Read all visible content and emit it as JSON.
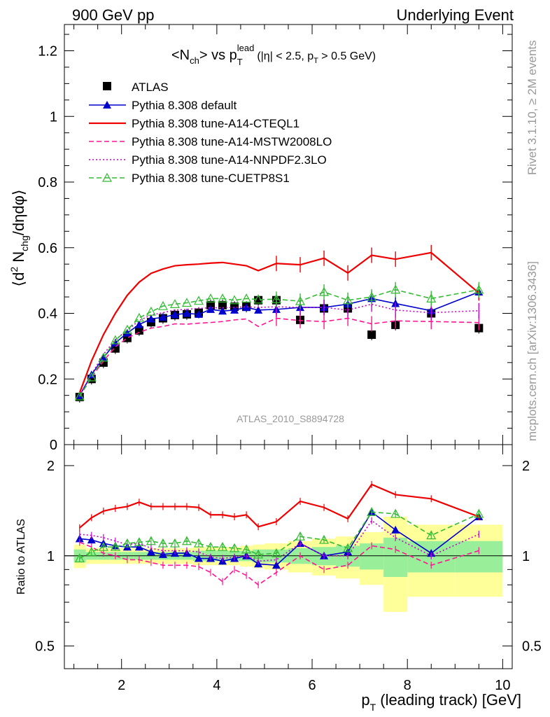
{
  "header": {
    "left": "900 GeV pp",
    "right": "Underlying Event"
  },
  "side_labels": {
    "rivet": "Rivet 3.1.10, ≥ 2M events",
    "mcplots": "mcplots.cern.ch [arXiv:1306.3436]"
  },
  "chart_data": {
    "type": "line",
    "title": "<N_ch> vs p_T^lead (|η| < 2.5, p_T > 0.5 GeV)",
    "title_parts": {
      "main_a": "<N",
      "main_a_sub": "ch",
      "main_b": "> vs p",
      "main_b_sup": "lead",
      "main_b_sub": "T",
      "cond_a": "(|η| < 2.5, p",
      "cond_a_sub": "T",
      "cond_b": " > 0.5 GeV)"
    },
    "watermark": "ATLAS_2010_S8894728",
    "xlabel": "p_T (leading track) [GeV]",
    "xlabel_parts": {
      "a": "p",
      "sub": "T",
      "b": " (leading track) [GeV]"
    },
    "ylabel": "⟨d² N_chg/dηdφ⟩",
    "ylabel_parts": {
      "a": "⟨d",
      "sup": "2",
      "b": " N",
      "sub": "chg",
      "c": "/dηdφ⟩"
    },
    "ratio_ylabel": "Ratio to ATLAS",
    "xlim": [
      0.8,
      10.2
    ],
    "ylim": [
      0,
      1.28
    ],
    "ratio_ylim": [
      0.42,
      2.35
    ],
    "x_ticks": [
      2,
      4,
      6,
      8,
      10
    ],
    "y_ticks": [
      0.2,
      0.4,
      0.6,
      0.8,
      1,
      1.2
    ],
    "y_tick_labels": [
      "0.2",
      "0.4",
      "0.6",
      "0.8",
      "1",
      "1.2"
    ],
    "y_zero_label": "0",
    "ratio_ticks": [
      0.5,
      1,
      2
    ],
    "ratio_tick_labels": [
      "0.5",
      "1",
      "2"
    ],
    "legend_position": "top-left",
    "x": [
      1.12,
      1.37,
      1.62,
      1.87,
      2.12,
      2.37,
      2.62,
      2.87,
      3.12,
      3.37,
      3.62,
      3.87,
      4.12,
      4.37,
      4.62,
      4.87,
      5.25,
      5.75,
      6.25,
      6.75,
      7.25,
      7.75,
      8.5,
      9.5
    ],
    "ratio_x": [
      1.12,
      1.37,
      1.62,
      1.87,
      2.12,
      2.37,
      2.62,
      2.87,
      3.12,
      3.37,
      3.62,
      3.87,
      4.12,
      4.37,
      4.62,
      4.87,
      5.25,
      5.75,
      6.25,
      6.75,
      7.25,
      7.75,
      8.5,
      9.5
    ],
    "ratio_reference": 1,
    "series": [
      {
        "name": "ATLAS",
        "style": "data",
        "color": "#000000",
        "values": [
          0.145,
          0.2,
          0.25,
          0.293,
          0.325,
          0.348,
          0.373,
          0.385,
          0.395,
          0.397,
          0.402,
          0.425,
          0.425,
          0.42,
          0.42,
          0.44,
          0.44,
          0.38,
          0.415,
          0.415,
          0.335,
          0.365,
          0.4,
          0.355
        ]
      },
      {
        "name": "Pythia 8.308 default",
        "style": "solid",
        "color": "#0000cc",
        "marker": "triangle",
        "values": [
          0.15,
          0.213,
          0.265,
          0.31,
          0.34,
          0.366,
          0.383,
          0.388,
          0.396,
          0.4,
          0.397,
          0.412,
          0.407,
          0.41,
          0.418,
          0.41,
          0.412,
          0.418,
          0.418,
          0.428,
          0.445,
          0.43,
          0.408,
          0.465
        ],
        "ratio": [
          1.14,
          1.13,
          1.1,
          1.08,
          1.07,
          1.07,
          1.03,
          1.01,
          1.02,
          1.02,
          0.98,
          0.98,
          0.96,
          0.98,
          1.0,
          0.94,
          0.93,
          1.1,
          1.0,
          1.03,
          1.4,
          1.22,
          1.02,
          1.35
        ],
        "ratio_label_index": null
      },
      {
        "name": "Pythia 8.308 tune-A14-CTEQL1",
        "style": "solid",
        "color": "#ee0000",
        "values": [
          0.158,
          0.255,
          0.335,
          0.4,
          0.455,
          0.495,
          0.522,
          0.535,
          0.545,
          0.548,
          0.55,
          0.553,
          0.555,
          0.55,
          0.545,
          0.53,
          0.552,
          0.548,
          0.568,
          0.523,
          0.577,
          0.565,
          0.585,
          0.462
        ],
        "ratio": [
          1.24,
          1.34,
          1.41,
          1.44,
          1.46,
          1.51,
          1.46,
          1.46,
          1.46,
          1.46,
          1.45,
          1.37,
          1.37,
          1.35,
          1.37,
          1.25,
          1.3,
          1.52,
          1.45,
          1.33,
          1.73,
          1.6,
          1.55,
          1.35
        ]
      },
      {
        "name": "Pythia 8.308 tune-A14-MSTW2008LO",
        "style": "dashed",
        "color": "#ff1493",
        "values": [
          0.147,
          0.205,
          0.255,
          0.298,
          0.325,
          0.342,
          0.355,
          0.36,
          0.368,
          0.367,
          0.37,
          0.372,
          0.375,
          0.38,
          0.383,
          0.36,
          0.385,
          0.378,
          0.375,
          0.385,
          0.368,
          0.377,
          0.375,
          0.372
        ],
        "ratio": [
          1.11,
          1.07,
          1.02,
          1.0,
          0.97,
          0.97,
          0.95,
          0.93,
          0.93,
          0.93,
          0.92,
          0.88,
          0.82,
          0.9,
          0.86,
          0.8,
          0.88,
          1.0,
          0.9,
          0.93,
          1.08,
          1.05,
          0.93,
          1.04
        ]
      },
      {
        "name": "Pythia 8.308 tune-A14-NNPDF2.3LO",
        "style": "dotted",
        "color": "#cc00cc",
        "values": [
          0.15,
          0.215,
          0.275,
          0.32,
          0.348,
          0.378,
          0.395,
          0.402,
          0.41,
          0.412,
          0.415,
          0.417,
          0.417,
          0.418,
          0.42,
          0.418,
          0.42,
          0.418,
          0.418,
          0.41,
          0.428,
          0.41,
          0.402,
          0.408
        ],
        "ratio": [
          1.18,
          1.17,
          1.15,
          1.12,
          1.09,
          1.1,
          1.06,
          1.04,
          1.04,
          1.04,
          1.03,
          0.99,
          0.98,
          0.99,
          1.0,
          0.96,
          0.97,
          1.1,
          1.0,
          1.0,
          1.31,
          1.15,
          1.0,
          1.18
        ]
      },
      {
        "name": "Pythia 8.308 tune-CUETP8S1",
        "style": "dashed",
        "color": "#33bb33",
        "marker": "open-triangle",
        "values": [
          0.147,
          0.205,
          0.265,
          0.318,
          0.35,
          0.386,
          0.405,
          0.422,
          0.428,
          0.432,
          0.438,
          0.445,
          0.445,
          0.44,
          0.445,
          0.442,
          0.443,
          0.437,
          0.465,
          0.44,
          0.45,
          0.472,
          0.445,
          0.472
        ],
        "ratio": [
          0.98,
          1.03,
          1.07,
          1.07,
          1.1,
          1.11,
          1.12,
          1.1,
          1.1,
          1.12,
          1.1,
          1.07,
          1.07,
          1.06,
          1.05,
          1.01,
          1.02,
          1.16,
          1.13,
          1.06,
          1.4,
          1.38,
          1.17,
          1.38
        ]
      }
    ],
    "error_band": {
      "x_edges": [
        1.0,
        1.25,
        1.5,
        1.75,
        2.0,
        2.25,
        2.5,
        2.75,
        3.0,
        3.25,
        3.5,
        3.75,
        4.0,
        4.25,
        4.5,
        4.75,
        5.0,
        5.5,
        6.0,
        6.5,
        7.0,
        7.5,
        8.0,
        9.0,
        10.0
      ],
      "inner": [
        0.05,
        0.03,
        0.03,
        0.03,
        0.03,
        0.03,
        0.03,
        0.03,
        0.03,
        0.03,
        0.04,
        0.04,
        0.04,
        0.04,
        0.04,
        0.05,
        0.05,
        0.06,
        0.07,
        0.08,
        0.1,
        0.15,
        0.12,
        0.12
      ],
      "outer": [
        0.09,
        0.06,
        0.06,
        0.06,
        0.06,
        0.06,
        0.06,
        0.06,
        0.06,
        0.06,
        0.07,
        0.07,
        0.07,
        0.07,
        0.08,
        0.09,
        0.1,
        0.12,
        0.14,
        0.16,
        0.2,
        0.35,
        0.27,
        0.27
      ]
    }
  }
}
